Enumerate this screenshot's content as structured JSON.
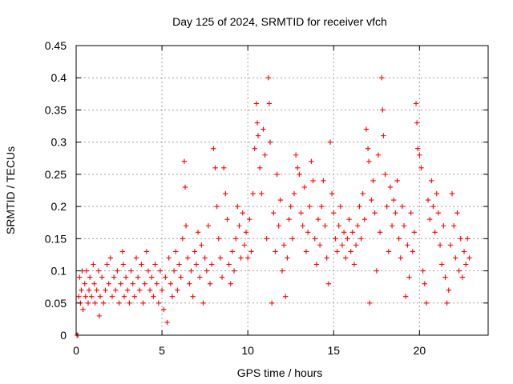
{
  "chart_data": {
    "type": "scatter",
    "title": "Day 125 of 2024, SRMTID for receiver vfch",
    "xlabel": "GPS time / hours",
    "ylabel": "SRMTID / TECUs",
    "xlim": [
      0,
      24
    ],
    "ylim": [
      0,
      0.45
    ],
    "xticks": [
      0,
      5,
      10,
      15,
      20
    ],
    "xtick_labels": [
      "0",
      "5",
      "10",
      "15",
      "20"
    ],
    "yticks": [
      0,
      0.05,
      0.1,
      0.15,
      0.2,
      0.25,
      0.3,
      0.35,
      0.4,
      0.45
    ],
    "ytick_labels": [
      "0",
      "0.05",
      "0.1",
      "0.15",
      "0.2",
      "0.25",
      "0.3",
      "0.35",
      "0.4",
      "0.45"
    ],
    "grid": true,
    "marker": "plus",
    "color": "#ff0000",
    "series": [
      {
        "name": "SRMTID",
        "points": [
          [
            0.05,
            0.0
          ],
          [
            0.1,
            0.0
          ],
          [
            0.15,
            0.06
          ],
          [
            0.2,
            0.09
          ],
          [
            0.25,
            0.05
          ],
          [
            0.3,
            0.07
          ],
          [
            0.35,
            0.1
          ],
          [
            0.4,
            0.04
          ],
          [
            0.5,
            0.08
          ],
          [
            0.55,
            0.06
          ],
          [
            0.6,
            0.1
          ],
          [
            0.7,
            0.05
          ],
          [
            0.75,
            0.07
          ],
          [
            0.8,
            0.09
          ],
          [
            0.9,
            0.06
          ],
          [
            1.0,
            0.11
          ],
          [
            1.05,
            0.08
          ],
          [
            1.1,
            0.05
          ],
          [
            1.2,
            0.07
          ],
          [
            1.3,
            0.1
          ],
          [
            1.35,
            0.03
          ],
          [
            1.4,
            0.06
          ],
          [
            1.5,
            0.09
          ],
          [
            1.6,
            0.05
          ],
          [
            1.7,
            0.07
          ],
          [
            1.8,
            0.11
          ],
          [
            1.9,
            0.08
          ],
          [
            2.0,
            0.12
          ],
          [
            2.1,
            0.06
          ],
          [
            2.2,
            0.09
          ],
          [
            2.3,
            0.07
          ],
          [
            2.4,
            0.1
          ],
          [
            2.5,
            0.05
          ],
          [
            2.6,
            0.08
          ],
          [
            2.7,
            0.13
          ],
          [
            2.75,
            0.11
          ],
          [
            2.8,
            0.06
          ],
          [
            2.9,
            0.09
          ],
          [
            3.0,
            0.07
          ],
          [
            3.1,
            0.05
          ],
          [
            3.2,
            0.1
          ],
          [
            3.3,
            0.08
          ],
          [
            3.4,
            0.06
          ],
          [
            3.5,
            0.12
          ],
          [
            3.6,
            0.09
          ],
          [
            3.7,
            0.07
          ],
          [
            3.8,
            0.11
          ],
          [
            3.9,
            0.05
          ],
          [
            4.0,
            0.08
          ],
          [
            4.1,
            0.13
          ],
          [
            4.2,
            0.1
          ],
          [
            4.3,
            0.07
          ],
          [
            4.4,
            0.09
          ],
          [
            4.5,
            0.06
          ],
          [
            4.6,
            0.11
          ],
          [
            4.7,
            0.08
          ],
          [
            4.8,
            0.05
          ],
          [
            4.9,
            0.1
          ],
          [
            5.0,
            0.07
          ],
          [
            5.1,
            0.04
          ],
          [
            5.2,
            0.09
          ],
          [
            5.3,
            0.02
          ],
          [
            5.4,
            0.12
          ],
          [
            5.5,
            0.08
          ],
          [
            5.6,
            0.06
          ],
          [
            5.7,
            0.1
          ],
          [
            5.8,
            0.13
          ],
          [
            5.9,
            0.07
          ],
          [
            6.0,
            0.11
          ],
          [
            6.1,
            0.09
          ],
          [
            6.2,
            0.15
          ],
          [
            6.3,
            0.27
          ],
          [
            6.35,
            0.23
          ],
          [
            6.4,
            0.17
          ],
          [
            6.5,
            0.12
          ],
          [
            6.6,
            0.08
          ],
          [
            6.7,
            0.1
          ],
          [
            6.8,
            0.06
          ],
          [
            6.9,
            0.13
          ],
          [
            7.0,
            0.11
          ],
          [
            7.1,
            0.16
          ],
          [
            7.2,
            0.09
          ],
          [
            7.3,
            0.14
          ],
          [
            7.4,
            0.05
          ],
          [
            7.5,
            0.12
          ],
          [
            7.6,
            0.1
          ],
          [
            7.7,
            0.17
          ],
          [
            7.8,
            0.08
          ],
          [
            7.9,
            0.11
          ],
          [
            8.0,
            0.29
          ],
          [
            8.1,
            0.26
          ],
          [
            8.2,
            0.2
          ],
          [
            8.3,
            0.15
          ],
          [
            8.4,
            0.12
          ],
          [
            8.5,
            0.09
          ],
          [
            8.6,
            0.26
          ],
          [
            8.7,
            0.22
          ],
          [
            8.8,
            0.18
          ],
          [
            8.9,
            0.11
          ],
          [
            9.0,
            0.08
          ],
          [
            9.1,
            0.13
          ],
          [
            9.2,
            0.1
          ],
          [
            9.3,
            0.15
          ],
          [
            9.4,
            0.2
          ],
          [
            9.5,
            0.17
          ],
          [
            9.6,
            0.12
          ],
          [
            9.7,
            0.19
          ],
          [
            9.8,
            0.14
          ],
          [
            9.9,
            0.16
          ],
          [
            10.0,
            0.12
          ],
          [
            10.1,
            0.18
          ],
          [
            10.2,
            0.13
          ],
          [
            10.3,
            0.22
          ],
          [
            10.4,
            0.29
          ],
          [
            10.5,
            0.36
          ],
          [
            10.55,
            0.33
          ],
          [
            10.6,
            0.31
          ],
          [
            10.7,
            0.26
          ],
          [
            10.8,
            0.22
          ],
          [
            10.9,
            0.32
          ],
          [
            11.0,
            0.28
          ],
          [
            11.1,
            0.15
          ],
          [
            11.2,
            0.4
          ],
          [
            11.25,
            0.36
          ],
          [
            11.3,
            0.3
          ],
          [
            11.4,
            0.05
          ],
          [
            11.5,
            0.19
          ],
          [
            11.6,
            0.13
          ],
          [
            11.7,
            0.25
          ],
          [
            11.8,
            0.17
          ],
          [
            11.9,
            0.21
          ],
          [
            12.0,
            0.1
          ],
          [
            12.1,
            0.14
          ],
          [
            12.2,
            0.06
          ],
          [
            12.3,
            0.12
          ],
          [
            12.4,
            0.18
          ],
          [
            12.5,
            0.2
          ],
          [
            12.6,
            0.15
          ],
          [
            12.7,
            0.22
          ],
          [
            12.8,
            0.28
          ],
          [
            12.9,
            0.26
          ],
          [
            13.0,
            0.25
          ],
          [
            13.1,
            0.19
          ],
          [
            13.2,
            0.17
          ],
          [
            13.3,
            0.23
          ],
          [
            13.4,
            0.13
          ],
          [
            13.5,
            0.16
          ],
          [
            13.6,
            0.2
          ],
          [
            13.7,
            0.27
          ],
          [
            13.8,
            0.24
          ],
          [
            13.9,
            0.15
          ],
          [
            14.0,
            0.11
          ],
          [
            14.1,
            0.18
          ],
          [
            14.2,
            0.14
          ],
          [
            14.3,
            0.2
          ],
          [
            14.4,
            0.24
          ],
          [
            14.5,
            0.17
          ],
          [
            14.6,
            0.12
          ],
          [
            14.7,
            0.08
          ],
          [
            14.8,
            0.3
          ],
          [
            14.9,
            0.22
          ],
          [
            15.0,
            0.19
          ],
          [
            15.1,
            0.15
          ],
          [
            15.2,
            0.13
          ],
          [
            15.3,
            0.17
          ],
          [
            15.4,
            0.2
          ],
          [
            15.5,
            0.14
          ],
          [
            15.6,
            0.16
          ],
          [
            15.7,
            0.12
          ],
          [
            15.8,
            0.15
          ],
          [
            15.9,
            0.18
          ],
          [
            16.0,
            0.13
          ],
          [
            16.1,
            0.16
          ],
          [
            16.2,
            0.11
          ],
          [
            16.3,
            0.14
          ],
          [
            16.4,
            0.17
          ],
          [
            16.5,
            0.2
          ],
          [
            16.6,
            0.15
          ],
          [
            16.7,
            0.22
          ],
          [
            16.8,
            0.18
          ],
          [
            16.9,
            0.32
          ],
          [
            17.0,
            0.29
          ],
          [
            17.05,
            0.27
          ],
          [
            17.1,
            0.05
          ],
          [
            17.2,
            0.21
          ],
          [
            17.3,
            0.24
          ],
          [
            17.4,
            0.19
          ],
          [
            17.5,
            0.1
          ],
          [
            17.6,
            0.28
          ],
          [
            17.7,
            0.16
          ],
          [
            17.8,
            0.4
          ],
          [
            17.85,
            0.35
          ],
          [
            17.9,
            0.31
          ],
          [
            18.0,
            0.25
          ],
          [
            18.1,
            0.2
          ],
          [
            18.2,
            0.13
          ],
          [
            18.3,
            0.23
          ],
          [
            18.4,
            0.17
          ],
          [
            18.5,
            0.21
          ],
          [
            18.6,
            0.19
          ],
          [
            18.7,
            0.24
          ],
          [
            18.8,
            0.15
          ],
          [
            18.9,
            0.12
          ],
          [
            19.0,
            0.2
          ],
          [
            19.1,
            0.17
          ],
          [
            19.2,
            0.06
          ],
          [
            19.3,
            0.14
          ],
          [
            19.4,
            0.09
          ],
          [
            19.5,
            0.19
          ],
          [
            19.6,
            0.13
          ],
          [
            19.7,
            0.16
          ],
          [
            19.8,
            0.36
          ],
          [
            19.85,
            0.33
          ],
          [
            19.9,
            0.29
          ],
          [
            20.0,
            0.28
          ],
          [
            20.1,
            0.26
          ],
          [
            20.2,
            0.1
          ],
          [
            20.3,
            0.08
          ],
          [
            20.4,
            0.05
          ],
          [
            20.5,
            0.21
          ],
          [
            20.6,
            0.18
          ],
          [
            20.7,
            0.24
          ],
          [
            20.8,
            0.2
          ],
          [
            20.9,
            0.16
          ],
          [
            21.0,
            0.22
          ],
          [
            21.1,
            0.19
          ],
          [
            21.2,
            0.14
          ],
          [
            21.3,
            0.11
          ],
          [
            21.4,
            0.17
          ],
          [
            21.5,
            0.09
          ],
          [
            21.6,
            0.05
          ],
          [
            21.7,
            0.07
          ],
          [
            21.8,
            0.14
          ],
          [
            21.9,
            0.22
          ],
          [
            22.0,
            0.17
          ],
          [
            22.1,
            0.12
          ],
          [
            22.2,
            0.19
          ],
          [
            22.3,
            0.1
          ],
          [
            22.4,
            0.15
          ],
          [
            22.5,
            0.09
          ],
          [
            22.6,
            0.13
          ],
          [
            22.7,
            0.11
          ],
          [
            22.8,
            0.15
          ],
          [
            22.9,
            0.12
          ]
        ]
      }
    ]
  }
}
